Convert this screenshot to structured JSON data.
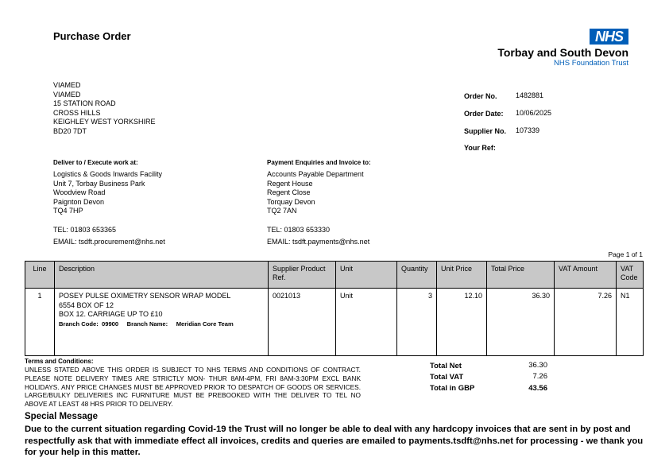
{
  "title": "Purchase Order",
  "logo": {
    "badge": "NHS",
    "trust": "Torbay and South Devon",
    "foundation": "NHS Foundation Trust",
    "color": "#005eb8"
  },
  "supplier_address": [
    "VIAMED",
    "VIAMED",
    "15 STATION ROAD",
    "CROSS HILLS",
    "KEIGHLEY WEST YORKSHIRE",
    "BD20 7DT"
  ],
  "order": {
    "order_no_label": "Order No.",
    "order_no": "1482881",
    "date_label": "Order Date:",
    "date": "10/06/2025",
    "supplier_no_label": "Supplier No.",
    "supplier_no": "107339",
    "your_ref_label": "Your Ref:"
  },
  "deliver": {
    "heading": "Deliver to / Execute work at:",
    "lines": [
      "Logistics & Goods Inwards Facility",
      "Unit 7, Torbay Business Park",
      "Woodview Road",
      "Paignton Devon",
      "TQ4 7HP"
    ],
    "tel": "TEL:  01803 653365",
    "email": "EMAIL:  tsdft.procurement@nhs.net"
  },
  "payment": {
    "heading": "Payment Enquiries and Invoice to:",
    "lines": [
      "Accounts Payable Department",
      "Regent House",
      "Regent Close",
      "Torquay Devon",
      "TQ2 7AN"
    ],
    "tel": "TEL:  01803 653330",
    "email": "EMAIL:  tsdft.payments@nhs.net"
  },
  "page": "Page 1 of 1",
  "table": {
    "headers": [
      "Line",
      "Description",
      "Supplier Product Ref.",
      "Unit",
      "Quantity",
      "Unit Price",
      "Total Price",
      "VAT Amount",
      "VAT Code"
    ],
    "row": {
      "line": "1",
      "desc": [
        "POSEY PULSE OXIMETRY SENSOR WRAP MODEL",
        "6554 BOX OF 12",
        "BOX 12.  CARRIAGE UP TO £10"
      ],
      "branch": "Branch Code:  09900     Branch Name:     Meridian Core Team",
      "ref": "0021013",
      "unit": "Unit",
      "qty": "3",
      "unit_price": "12.10",
      "total": "36.30",
      "vat": "7.26",
      "code": "N1"
    }
  },
  "terms": {
    "heading": "Terms and Conditions:",
    "text": "UNLESS STATED ABOVE THIS ORDER IS SUBJECT TO NHS TERMS AND CONDITIONS OF CONTRACT. PLEASE NOTE DELIVERY TIMES ARE STRICTLY MON- THUR 8AM-4PM, FRI 8AM-3:30PM EXCL BANK HOLIDAYS. ANY PRICE CHANGES MUST BE APPROVED PRIOR TO DESPATCH OF GOODS OR SERVICES. LARGE/BULKY DELIVERIES INC FURNITURE MUST BE PREBOOKED WITH THE DELIVER TO TEL NO ABOVE AT LEAST 48 HRS PRIOR TO DELIVERY."
  },
  "totals": {
    "net_label": "Total Net",
    "net": "36.30",
    "vat_label": "Total VAT",
    "vat": "7.26",
    "gbp_label": "Total in GBP",
    "gbp": "43.56"
  },
  "special": {
    "heading": "Special Message",
    "text": "Due to the current situation regarding Covid-19 the Trust will no longer be able to deal with any hardcopy invoices that are sent in by post and respectfully ask that with immediate effect all invoices, credits and queries are emailed to payments.tsdft@nhs.net for processing - we thank you for your help in this matter."
  }
}
